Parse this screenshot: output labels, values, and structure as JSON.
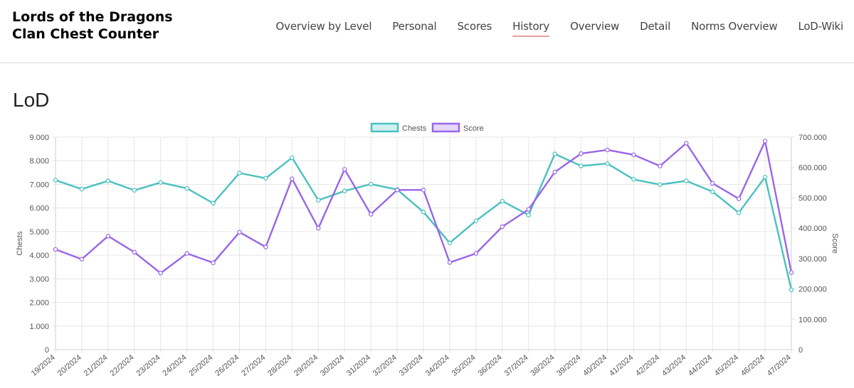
{
  "header": {
    "brand_line1": "Lords of the Dragons",
    "brand_line2": "Clan Chest Counter",
    "nav": [
      {
        "label": "Overview by Level",
        "active": false
      },
      {
        "label": "Personal",
        "active": false
      },
      {
        "label": "Scores",
        "active": false
      },
      {
        "label": "History",
        "active": true
      },
      {
        "label": "Overview",
        "active": false
      },
      {
        "label": "Detail",
        "active": false
      },
      {
        "label": "Norms Overview",
        "active": false
      },
      {
        "label": "LoD-Wiki",
        "active": false
      }
    ]
  },
  "page": {
    "title": "LoD"
  },
  "chart_data": {
    "type": "line",
    "categories": [
      "19/2024",
      "20/2024",
      "21/2024",
      "22/2024",
      "23/2024",
      "24/2024",
      "25/2024",
      "26/2024",
      "27/2024",
      "28/2024",
      "29/2024",
      "30/2024",
      "31/2024",
      "32/2024",
      "33/2024",
      "34/2024",
      "35/2024",
      "36/2024",
      "37/2024",
      "38/2024",
      "39/2024",
      "40/2024",
      "41/2024",
      "42/2024",
      "43/2024",
      "44/2024",
      "45/2024",
      "46/2024",
      "47/2024"
    ],
    "series": [
      {
        "name": "Chests",
        "axis": "left",
        "color": "#4bc0c0",
        "values": [
          7180,
          6800,
          7150,
          6750,
          7080,
          6830,
          6200,
          7480,
          7260,
          8130,
          6330,
          6720,
          7010,
          6780,
          5830,
          4520,
          5460,
          6290,
          5700,
          8290,
          7780,
          7880,
          7210,
          6990,
          7150,
          6690,
          5800,
          7310,
          2530
        ]
      },
      {
        "name": "Score",
        "axis": "right",
        "color": "#9966e8",
        "values": [
          330000,
          298000,
          374000,
          321000,
          252000,
          317000,
          286000,
          387000,
          338000,
          563000,
          400000,
          594000,
          446000,
          526000,
          526000,
          287000,
          317000,
          405000,
          462000,
          585000,
          646000,
          658000,
          642000,
          605000,
          680000,
          548000,
          497000,
          687000,
          254000
        ]
      }
    ],
    "left_axis": {
      "label": "Chests",
      "min": 0,
      "max": 9000,
      "ticks": [
        "0",
        "1.000",
        "2.000",
        "3.000",
        "4.000",
        "5.000",
        "6.000",
        "7.000",
        "8.000",
        "9.000"
      ]
    },
    "right_axis": {
      "label": "Score",
      "min": 0,
      "max": 700000,
      "ticks": [
        "0",
        "100.000",
        "200.000",
        "300.000",
        "400.000",
        "500.000",
        "600.000",
        "700.000"
      ]
    },
    "legend": "top-center",
    "grid": true
  }
}
